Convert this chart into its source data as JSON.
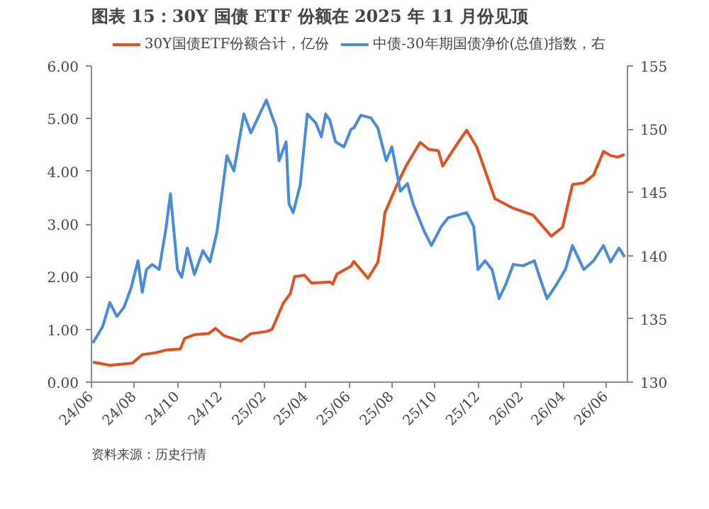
{
  "chart_data": {
    "type": "line",
    "title": "图表 15：30Y 国债 ETF 份额在 2025 年 11 月份见顶",
    "annotations": [
      "资料来源：历史行情"
    ],
    "xlim": [
      "2024-06-01",
      "2026-07-01"
    ],
    "xticks": [
      {
        "value": "2024-06-01",
        "label": "24/06"
      },
      {
        "value": "2024-08-01",
        "label": "24/08"
      },
      {
        "value": "2024-10-01",
        "label": "24/10"
      },
      {
        "value": "2024-12-01",
        "label": "24/12"
      },
      {
        "value": "2025-02-01",
        "label": "25/02"
      },
      {
        "value": "2025-04-01",
        "label": "25/04"
      },
      {
        "value": "2025-06-01",
        "label": "25/06"
      },
      {
        "value": "2025-08-01",
        "label": "25/08"
      },
      {
        "value": "2025-10-01",
        "label": "25/10"
      },
      {
        "value": "2025-12-01",
        "label": "25/12"
      },
      {
        "value": "2026-02-01",
        "label": "26/02"
      },
      {
        "value": "2026-04-01",
        "label": "26/04"
      },
      {
        "value": "2026-06-01",
        "label": "26/06"
      }
    ],
    "ylim": [
      0,
      6
    ],
    "yticks": [
      {
        "value": 0,
        "label": "0.00"
      },
      {
        "value": 1,
        "label": "1.00"
      },
      {
        "value": 2,
        "label": "2.00"
      },
      {
        "value": 3,
        "label": "3.00"
      },
      {
        "value": 4,
        "label": "4.00"
      },
      {
        "value": 5,
        "label": "5.00"
      },
      {
        "value": 6,
        "label": "6.00"
      }
    ],
    "y2lim": [
      130,
      155
    ],
    "y2ticks": [
      130,
      135,
      140,
      145,
      150,
      155
    ],
    "grid": false,
    "legend": "top",
    "series": [
      {
        "name": "30Y国债ETF份额合计，亿份",
        "color": "#e2501e",
        "x": [
          "2024-06-03",
          "2024-06-27",
          "2024-07-29",
          "2024-08-12",
          "2024-09-01",
          "2024-09-15",
          "2024-10-05",
          "2024-10-11",
          "2024-10-25",
          "2024-11-14",
          "2024-11-24",
          "2024-12-06",
          "2024-12-30",
          "2025-01-13",
          "2025-02-04",
          "2025-02-12",
          "2025-02-28",
          "2025-03-10",
          "2025-03-16",
          "2025-03-30",
          "2025-04-09",
          "2025-05-05",
          "2025-05-09",
          "2025-05-15",
          "2025-06-04",
          "2025-06-08",
          "2025-06-28",
          "2025-07-12",
          "2025-07-18",
          "2025-07-22",
          "2025-08-07",
          "2025-08-21",
          "2025-09-10",
          "2025-09-22",
          "2025-10-06",
          "2025-10-12",
          "2025-10-30",
          "2025-11-15",
          "2025-11-29",
          "2025-12-11",
          "2025-12-25",
          "2026-01-20",
          "2026-02-17",
          "2026-03-15",
          "2026-03-31",
          "2026-04-14",
          "2026-04-30",
          "2026-05-14",
          "2026-05-28",
          "2026-06-07",
          "2026-06-17",
          "2026-06-27"
        ],
        "values": [
          0.38,
          0.32,
          0.36,
          0.52,
          0.56,
          0.61,
          0.63,
          0.83,
          0.9,
          0.92,
          1.02,
          0.88,
          0.78,
          0.92,
          0.96,
          1.0,
          1.5,
          1.68,
          2.0,
          2.03,
          1.88,
          1.9,
          1.86,
          2.05,
          2.2,
          2.29,
          1.97,
          2.27,
          2.77,
          3.21,
          3.71,
          4.1,
          4.55,
          4.42,
          4.39,
          4.1,
          4.47,
          4.78,
          4.47,
          4.02,
          3.48,
          3.3,
          3.17,
          2.77,
          2.94,
          3.75,
          3.78,
          3.93,
          4.38,
          4.3,
          4.27,
          4.32
        ]
      },
      {
        "name": "中债-30年期国债净价(总值)指数，右",
        "color": "#4a8ad6",
        "axis": "y2",
        "x": [
          "2024-06-03",
          "2024-06-17",
          "2024-06-27",
          "2024-07-07",
          "2024-07-17",
          "2024-07-27",
          "2024-08-06",
          "2024-08-12",
          "2024-08-18",
          "2024-08-26",
          "2024-09-05",
          "2024-09-15",
          "2024-09-21",
          "2024-10-01",
          "2024-10-07",
          "2024-10-15",
          "2024-10-25",
          "2024-11-06",
          "2024-11-16",
          "2024-11-26",
          "2024-12-10",
          "2024-12-20",
          "2025-01-03",
          "2025-01-13",
          "2025-01-23",
          "2025-02-04",
          "2025-02-18",
          "2025-02-22",
          "2025-03-04",
          "2025-03-08",
          "2025-03-14",
          "2025-03-24",
          "2025-04-03",
          "2025-04-15",
          "2025-04-23",
          "2025-04-29",
          "2025-05-05",
          "2025-05-13",
          "2025-05-25",
          "2025-06-04",
          "2025-06-08",
          "2025-06-18",
          "2025-07-02",
          "2025-07-12",
          "2025-07-24",
          "2025-08-01",
          "2025-08-13",
          "2025-08-23",
          "2025-08-31",
          "2025-09-16",
          "2025-09-26",
          "2025-10-10",
          "2025-10-20",
          "2025-11-15",
          "2025-11-25",
          "2025-12-01",
          "2025-12-11",
          "2025-12-21",
          "2025-12-31",
          "2026-01-10",
          "2026-01-20",
          "2026-02-03",
          "2026-02-19",
          "2026-02-27",
          "2026-03-09",
          "2026-03-21",
          "2026-04-04",
          "2026-04-14",
          "2026-04-30",
          "2026-05-14",
          "2026-05-28",
          "2026-06-07",
          "2026-06-19",
          "2026-06-27"
        ],
        "values": [
          133.1,
          134.4,
          136.3,
          135.2,
          135.9,
          137.4,
          139.6,
          137.1,
          138.9,
          139.3,
          138.9,
          142.3,
          144.9,
          138.9,
          138.3,
          140.6,
          138.5,
          140.4,
          139.5,
          141.9,
          147.9,
          146.7,
          151.2,
          149.7,
          150.9,
          152.3,
          150.1,
          147.5,
          149.0,
          144.1,
          143.4,
          145.6,
          151.2,
          150.5,
          149.4,
          151.2,
          150.7,
          149.0,
          148.6,
          150.0,
          150.1,
          151.1,
          150.9,
          150.1,
          147.5,
          148.6,
          145.1,
          145.7,
          144.1,
          141.9,
          140.8,
          142.3,
          143.0,
          143.4,
          142.3,
          138.9,
          139.6,
          138.9,
          136.6,
          137.8,
          139.3,
          139.2,
          139.6,
          138.2,
          136.6,
          137.6,
          138.9,
          140.8,
          138.9,
          139.6,
          140.8,
          139.5,
          140.6,
          139.9
        ]
      }
    ]
  }
}
